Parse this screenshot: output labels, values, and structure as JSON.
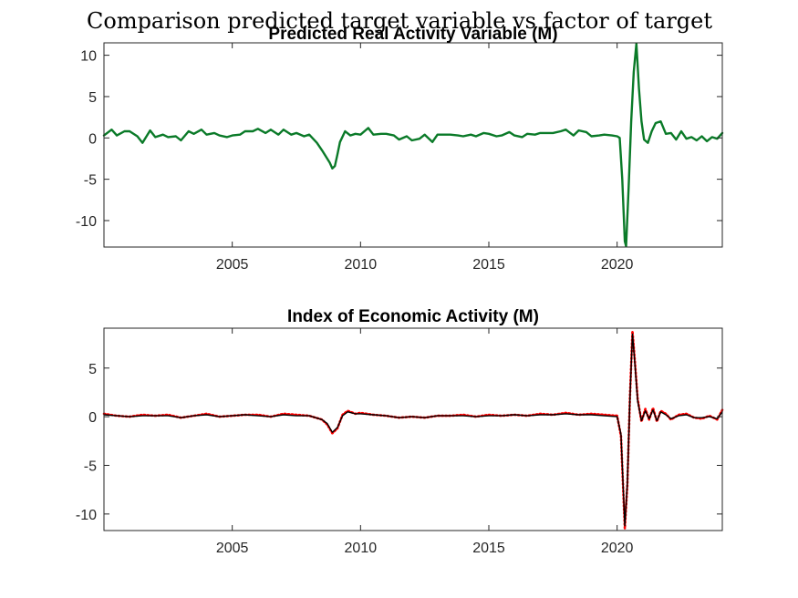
{
  "figure": {
    "suptitle": "Comparison predicted target variable vs factor of target"
  },
  "chart_data": [
    {
      "type": "line",
      "title": "Predicted Real Activity Variable (M)",
      "xlabel": "",
      "ylabel": "",
      "xlim": [
        2000.0,
        2024.1
      ],
      "ylim": [
        -13.2,
        11.5
      ],
      "xticks": [
        2005,
        2010,
        2015,
        2020
      ],
      "yticks": [
        -10,
        -5,
        0,
        5,
        10
      ],
      "grid": false,
      "color": "#0a7a28",
      "series": [
        {
          "x": [
            2000.0,
            2000.3,
            2000.5,
            2000.8,
            2001.0,
            2001.3,
            2001.5,
            2001.8,
            2002.0,
            2002.3,
            2002.5,
            2002.8,
            2003.0,
            2003.3,
            2003.5,
            2003.8,
            2004.0,
            2004.3,
            2004.5,
            2004.8,
            2005.0,
            2005.3,
            2005.5,
            2005.8,
            2006.0,
            2006.3,
            2006.5,
            2006.8,
            2007.0,
            2007.3,
            2007.5,
            2007.8,
            2008.0,
            2008.3,
            2008.5,
            2008.8,
            2008.9,
            2009.0,
            2009.1,
            2009.2,
            2009.4,
            2009.6,
            2009.8,
            2010.0,
            2010.3,
            2010.5,
            2010.8,
            2011.0,
            2011.3,
            2011.5,
            2011.8,
            2012.0,
            2012.3,
            2012.5,
            2012.8,
            2013.0,
            2013.3,
            2013.5,
            2013.8,
            2014.0,
            2014.3,
            2014.5,
            2014.8,
            2015.0,
            2015.3,
            2015.5,
            2015.8,
            2016.0,
            2016.3,
            2016.5,
            2016.8,
            2017.0,
            2017.3,
            2017.5,
            2017.8,
            2018.0,
            2018.3,
            2018.5,
            2018.8,
            2019.0,
            2019.3,
            2019.5,
            2019.8,
            2020.0,
            2020.1,
            2020.2,
            2020.3,
            2020.35,
            2020.45,
            2020.55,
            2020.65,
            2020.75,
            2020.85,
            2020.95,
            2021.05,
            2021.2,
            2021.35,
            2021.5,
            2021.7,
            2021.9,
            2022.1,
            2022.3,
            2022.5,
            2022.7,
            2022.9,
            2023.1,
            2023.3,
            2023.5,
            2023.7,
            2023.9,
            2024.1
          ],
          "y": [
            0.3,
            1.0,
            0.3,
            0.8,
            0.8,
            0.2,
            -0.6,
            0.9,
            0.1,
            0.4,
            0.1,
            0.2,
            -0.3,
            0.8,
            0.5,
            1.0,
            0.4,
            0.6,
            0.3,
            0.1,
            0.3,
            0.4,
            0.8,
            0.8,
            1.1,
            0.6,
            1.0,
            0.4,
            1.0,
            0.4,
            0.6,
            0.2,
            0.4,
            -0.6,
            -1.5,
            -3.0,
            -3.7,
            -3.4,
            -2.0,
            -0.5,
            0.8,
            0.3,
            0.5,
            0.4,
            1.2,
            0.4,
            0.5,
            0.5,
            0.3,
            -0.2,
            0.2,
            -0.3,
            -0.1,
            0.4,
            -0.5,
            0.4,
            0.4,
            0.4,
            0.3,
            0.2,
            0.4,
            0.2,
            0.6,
            0.5,
            0.2,
            0.3,
            0.7,
            0.3,
            0.1,
            0.5,
            0.4,
            0.6,
            0.6,
            0.6,
            0.8,
            1.0,
            0.3,
            0.9,
            0.7,
            0.2,
            0.3,
            0.4,
            0.3,
            0.2,
            0.0,
            -5.0,
            -12.5,
            -13.1,
            -6.0,
            2.0,
            8.0,
            11.4,
            6.0,
            2.0,
            -0.2,
            -0.6,
            0.8,
            1.8,
            2.0,
            0.5,
            0.6,
            -0.2,
            0.8,
            -0.1,
            0.1,
            -0.3,
            0.2,
            -0.4,
            0.1,
            -0.1,
            0.6
          ]
        }
      ]
    },
    {
      "type": "line",
      "title": "Index of Economic Activity (M)",
      "xlabel": "",
      "ylabel": "",
      "xlim": [
        2000.0,
        2024.1
      ],
      "ylim": [
        -11.7,
        9.1
      ],
      "xticks": [
        2005,
        2010,
        2015,
        2020
      ],
      "yticks": [
        -10,
        -5,
        0,
        5
      ],
      "grid": false,
      "series": [
        {
          "color": "#ff0000",
          "style": "dotted",
          "x": [
            2000.0,
            2000.5,
            2001.0,
            2001.5,
            2002.0,
            2002.5,
            2003.0,
            2003.5,
            2004.0,
            2004.5,
            2005.0,
            2005.5,
            2006.0,
            2006.5,
            2007.0,
            2007.5,
            2008.0,
            2008.5,
            2008.7,
            2008.9,
            2009.1,
            2009.3,
            2009.5,
            2009.8,
            2010.0,
            2010.5,
            2011.0,
            2011.5,
            2012.0,
            2012.5,
            2013.0,
            2013.5,
            2014.0,
            2014.5,
            2015.0,
            2015.5,
            2016.0,
            2016.5,
            2017.0,
            2017.5,
            2018.0,
            2018.5,
            2019.0,
            2019.5,
            2020.0,
            2020.15,
            2020.3,
            2020.4,
            2020.5,
            2020.6,
            2020.7,
            2020.8,
            2020.95,
            2021.1,
            2021.25,
            2021.4,
            2021.55,
            2021.7,
            2021.9,
            2022.1,
            2022.4,
            2022.7,
            2023.0,
            2023.3,
            2023.6,
            2023.9,
            2024.1
          ],
          "y": [
            0.3,
            0.1,
            0.0,
            0.2,
            0.1,
            0.2,
            -0.1,
            0.1,
            0.3,
            0.0,
            0.1,
            0.2,
            0.2,
            0.0,
            0.3,
            0.2,
            0.1,
            -0.3,
            -0.8,
            -1.7,
            -1.2,
            0.2,
            0.6,
            0.3,
            0.4,
            0.2,
            0.1,
            -0.1,
            0.0,
            -0.1,
            0.1,
            0.1,
            0.2,
            0.0,
            0.2,
            0.1,
            0.2,
            0.1,
            0.3,
            0.2,
            0.4,
            0.2,
            0.3,
            0.2,
            0.1,
            -2.0,
            -11.5,
            -7.0,
            2.0,
            8.8,
            5.5,
            1.8,
            -0.5,
            0.8,
            -0.3,
            0.9,
            -0.5,
            0.6,
            0.3,
            -0.3,
            0.2,
            0.3,
            -0.1,
            -0.2,
            0.1,
            -0.3,
            0.7
          ]
        },
        {
          "color": "#000000",
          "style": "solid",
          "x": [
            2000.0,
            2000.5,
            2001.0,
            2001.5,
            2002.0,
            2002.5,
            2003.0,
            2003.5,
            2004.0,
            2004.5,
            2005.0,
            2005.5,
            2006.0,
            2006.5,
            2007.0,
            2007.5,
            2008.0,
            2008.5,
            2008.7,
            2008.9,
            2009.1,
            2009.3,
            2009.5,
            2009.8,
            2010.0,
            2010.5,
            2011.0,
            2011.5,
            2012.0,
            2012.5,
            2013.0,
            2013.5,
            2014.0,
            2014.5,
            2015.0,
            2015.5,
            2016.0,
            2016.5,
            2017.0,
            2017.5,
            2018.0,
            2018.5,
            2019.0,
            2019.5,
            2020.0,
            2020.15,
            2020.3,
            2020.4,
            2020.5,
            2020.6,
            2020.7,
            2020.8,
            2020.95,
            2021.1,
            2021.25,
            2021.4,
            2021.55,
            2021.7,
            2021.9,
            2022.1,
            2022.4,
            2022.7,
            2023.0,
            2023.3,
            2023.6,
            2023.9,
            2024.1
          ],
          "y": [
            0.2,
            0.1,
            0.0,
            0.1,
            0.1,
            0.1,
            -0.1,
            0.1,
            0.2,
            0.0,
            0.1,
            0.2,
            0.1,
            0.0,
            0.2,
            0.1,
            0.1,
            -0.3,
            -0.7,
            -1.6,
            -1.1,
            0.1,
            0.5,
            0.3,
            0.3,
            0.2,
            0.1,
            -0.1,
            0.0,
            -0.1,
            0.1,
            0.1,
            0.1,
            0.0,
            0.1,
            0.1,
            0.2,
            0.1,
            0.2,
            0.2,
            0.3,
            0.2,
            0.2,
            0.1,
            0.0,
            -1.8,
            -11.2,
            -6.8,
            1.8,
            8.5,
            5.2,
            1.6,
            -0.4,
            0.6,
            -0.2,
            0.7,
            -0.4,
            0.5,
            0.2,
            -0.2,
            0.1,
            0.2,
            -0.1,
            -0.1,
            0.0,
            -0.2,
            0.5
          ]
        }
      ]
    }
  ]
}
